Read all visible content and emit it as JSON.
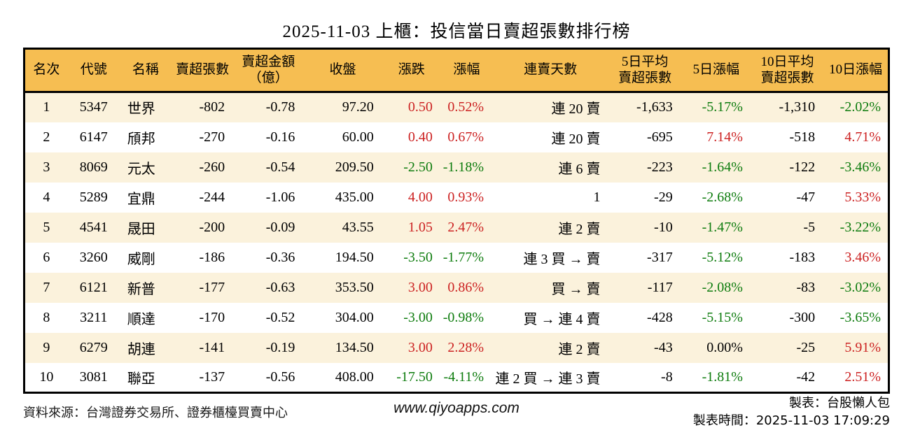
{
  "title": "2025-11-03 上櫃：投信當日賣超張數排行榜",
  "colors": {
    "up": "#cc2222",
    "down": "#0e7c0e",
    "flat": "#000000",
    "header_bg": "#f6be52",
    "row_alt_bg": "#fbf2dc",
    "border": "#000000"
  },
  "table": {
    "columns": [
      {
        "label": "名次"
      },
      {
        "label": "代號"
      },
      {
        "label": "名稱"
      },
      {
        "label": "賣超張數"
      },
      {
        "label": "賣超金額\n（億）"
      },
      {
        "label": "收盤"
      },
      {
        "label": "漲跌"
      },
      {
        "label": "漲幅"
      },
      {
        "label": "連賣天數"
      },
      {
        "label": "5日平均\n賣超張數"
      },
      {
        "label": "5日漲幅"
      },
      {
        "label": "10日平均\n賣超張數"
      },
      {
        "label": "10日漲幅"
      }
    ],
    "rows": [
      {
        "rank": "1",
        "code": "5347",
        "name": "世界",
        "sell_volume": "-802",
        "sell_amount": "-0.78",
        "close": "97.20",
        "change": "0.50",
        "change_pct": "0.52%",
        "chg_dir": "up",
        "streak": "連 20 賣",
        "avg5": "-1,633",
        "pct5": "-5.17%",
        "d5_dir": "down",
        "avg10": "-1,310",
        "pct10": "-2.02%",
        "d10_dir": "down"
      },
      {
        "rank": "2",
        "code": "6147",
        "name": "頎邦",
        "sell_volume": "-270",
        "sell_amount": "-0.16",
        "close": "60.00",
        "change": "0.40",
        "change_pct": "0.67%",
        "chg_dir": "up",
        "streak": "連 20 賣",
        "avg5": "-695",
        "pct5": "7.14%",
        "d5_dir": "up",
        "avg10": "-518",
        "pct10": "4.71%",
        "d10_dir": "up"
      },
      {
        "rank": "3",
        "code": "8069",
        "name": "元太",
        "sell_volume": "-260",
        "sell_amount": "-0.54",
        "close": "209.50",
        "change": "-2.50",
        "change_pct": "-1.18%",
        "chg_dir": "down",
        "streak": "連 6 賣",
        "avg5": "-223",
        "pct5": "-1.64%",
        "d5_dir": "down",
        "avg10": "-122",
        "pct10": "-3.46%",
        "d10_dir": "down"
      },
      {
        "rank": "4",
        "code": "5289",
        "name": "宜鼎",
        "sell_volume": "-244",
        "sell_amount": "-1.06",
        "close": "435.00",
        "change": "4.00",
        "change_pct": "0.93%",
        "chg_dir": "up",
        "streak": "1",
        "avg5": "-29",
        "pct5": "-2.68%",
        "d5_dir": "down",
        "avg10": "-47",
        "pct10": "5.33%",
        "d10_dir": "up"
      },
      {
        "rank": "5",
        "code": "4541",
        "name": "晟田",
        "sell_volume": "-200",
        "sell_amount": "-0.09",
        "close": "43.55",
        "change": "1.05",
        "change_pct": "2.47%",
        "chg_dir": "up",
        "streak": "連 2 賣",
        "avg5": "-10",
        "pct5": "-1.47%",
        "d5_dir": "down",
        "avg10": "-5",
        "pct10": "-3.22%",
        "d10_dir": "down"
      },
      {
        "rank": "6",
        "code": "3260",
        "name": "威剛",
        "sell_volume": "-186",
        "sell_amount": "-0.36",
        "close": "194.50",
        "change": "-3.50",
        "change_pct": "-1.77%",
        "chg_dir": "down",
        "streak": "連 3 買 → 賣",
        "avg5": "-317",
        "pct5": "-5.12%",
        "d5_dir": "down",
        "avg10": "-183",
        "pct10": "3.46%",
        "d10_dir": "up"
      },
      {
        "rank": "7",
        "code": "6121",
        "name": "新普",
        "sell_volume": "-177",
        "sell_amount": "-0.63",
        "close": "353.50",
        "change": "3.00",
        "change_pct": "0.86%",
        "chg_dir": "up",
        "streak": "買 → 賣",
        "avg5": "-117",
        "pct5": "-2.08%",
        "d5_dir": "down",
        "avg10": "-83",
        "pct10": "-3.02%",
        "d10_dir": "down"
      },
      {
        "rank": "8",
        "code": "3211",
        "name": "順達",
        "sell_volume": "-170",
        "sell_amount": "-0.52",
        "close": "304.00",
        "change": "-3.00",
        "change_pct": "-0.98%",
        "chg_dir": "down",
        "streak": "買 → 連 4 賣",
        "avg5": "-428",
        "pct5": "-5.15%",
        "d5_dir": "down",
        "avg10": "-300",
        "pct10": "-3.65%",
        "d10_dir": "down"
      },
      {
        "rank": "9",
        "code": "6279",
        "name": "胡連",
        "sell_volume": "-141",
        "sell_amount": "-0.19",
        "close": "134.50",
        "change": "3.00",
        "change_pct": "2.28%",
        "chg_dir": "up",
        "streak": "連 2 賣",
        "avg5": "-43",
        "pct5": "0.00%",
        "d5_dir": "flat",
        "avg10": "-25",
        "pct10": "5.91%",
        "d10_dir": "up"
      },
      {
        "rank": "10",
        "code": "3081",
        "name": "聯亞",
        "sell_volume": "-137",
        "sell_amount": "-0.56",
        "close": "408.00",
        "change": "-17.50",
        "change_pct": "-4.11%",
        "chg_dir": "down",
        "streak": "連 2 買 → 連 3 賣",
        "avg5": "-8",
        "pct5": "-1.81%",
        "d5_dir": "down",
        "avg10": "-42",
        "pct10": "2.51%",
        "d10_dir": "up"
      }
    ]
  },
  "footer": {
    "source": "資料來源：台灣證券交易所、證券櫃檯買賣中心",
    "website": "www.qiyoapps.com",
    "made_by": "製表：台股懶人包",
    "made_at_label": "製表時間：",
    "made_at": "2025-11-03 17:09:29"
  }
}
